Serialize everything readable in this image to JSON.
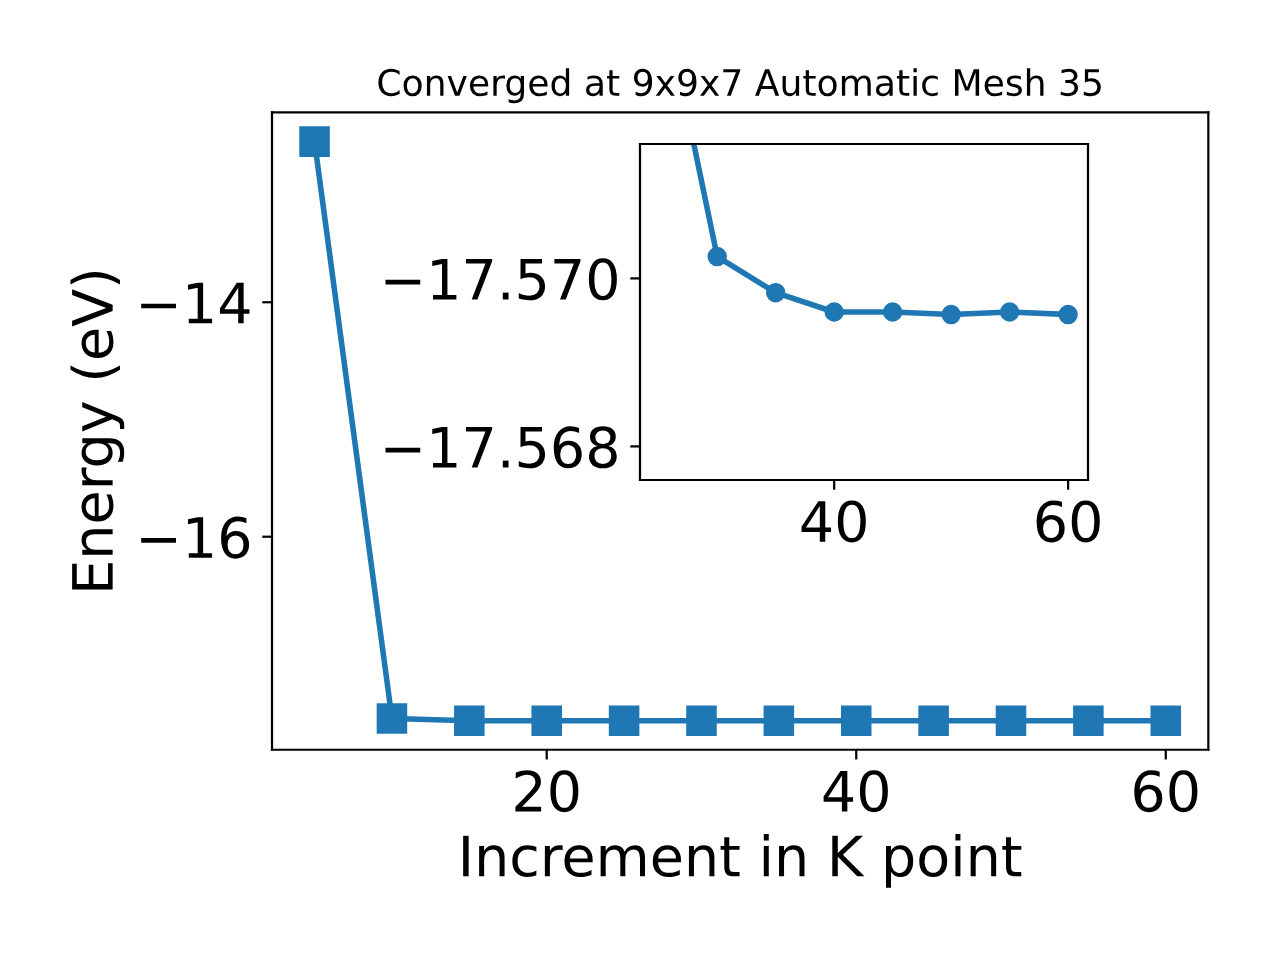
{
  "chart_data": [
    {
      "type": "line",
      "title": "Converged at 9x9x7 Automatic Mesh 35",
      "xlabel": "Increment in K point",
      "ylabel": "Energy (eV)",
      "x": [
        5,
        10,
        15,
        20,
        25,
        30,
        35,
        40,
        45,
        50,
        55,
        60
      ],
      "series": [
        {
          "color": "#1f77b4",
          "values": [
            -12.63,
            -17.55,
            -17.57,
            -17.57,
            -17.57,
            -17.57,
            -17.57,
            -17.57,
            -17.57,
            -17.57,
            -17.57,
            -17.57
          ]
        }
      ],
      "xlim": [
        2.25,
        62.75
      ],
      "ylim": [
        -17.817,
        -12.38
      ],
      "xticks": [
        20,
        40,
        60
      ],
      "yticks": [
        {
          "value": -14,
          "label": "−14"
        },
        {
          "value": -16,
          "label": "−16"
        }
      ],
      "marker": "square",
      "line_style": "solid",
      "grid": false
    },
    {
      "type": "line",
      "x": [
        28,
        30,
        35,
        40,
        45,
        50,
        55,
        60
      ],
      "series": [
        {
          "color": "#1f77b4",
          "values": [
            -17.5716,
            -17.57026,
            -17.56983,
            -17.5696,
            -17.5696,
            -17.56957,
            -17.5696,
            -17.56957
          ]
        }
      ],
      "xlim": [
        23.4,
        61.7
      ],
      "ylim": [
        -17.5676,
        -17.5716
      ],
      "xticks": [
        40,
        60
      ],
      "yticks": [
        {
          "value": -17.57,
          "label": "−17.570"
        },
        {
          "value": -17.568,
          "label": "−17.568"
        }
      ],
      "marker": "circle",
      "line_style": "solid",
      "grid": false
    }
  ]
}
